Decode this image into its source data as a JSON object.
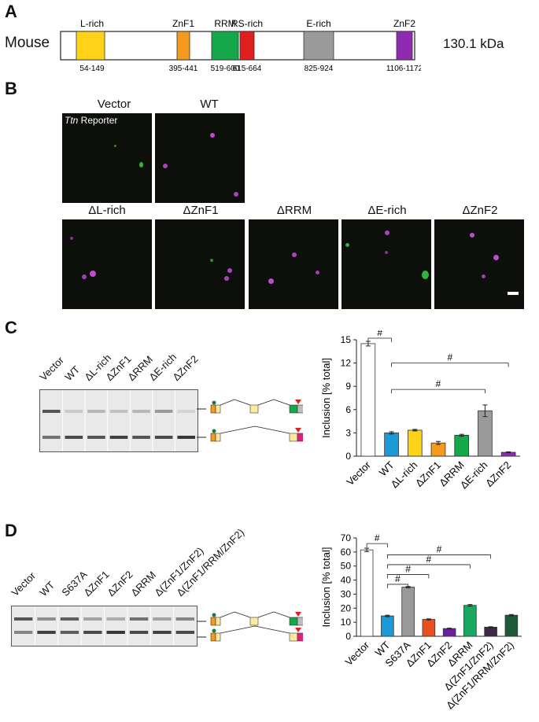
{
  "panel_a": {
    "letter": "A",
    "species": "Mouse",
    "mass": "130.1 kDa",
    "domains": [
      {
        "name": "L-rich",
        "range": "54-149",
        "color": "#ffd21a"
      },
      {
        "name": "ZnF1",
        "range": "395-441",
        "color": "#f39a1f"
      },
      {
        "name": "RRM",
        "range": "519-600",
        "color": "#15a84a"
      },
      {
        "name": "RS-rich",
        "range": "615-664",
        "color": "#e0201e"
      },
      {
        "name": "E-rich",
        "range": "825-924",
        "color": "#9a9a9a"
      },
      {
        "name": "ZnF2",
        "range": "1106-1172",
        "color": "#8e2bb0"
      }
    ]
  },
  "panel_b": {
    "letter": "B",
    "reporter_italic": "Ttn",
    "reporter_rest": " Reporter",
    "top_labels": [
      "Vector",
      "WT"
    ],
    "bottom_labels": [
      "ΔL-rich",
      "ΔZnF1",
      "ΔRRM",
      "ΔE-rich",
      "ΔZnF2"
    ]
  },
  "panel_c": {
    "letter": "C",
    "gel_lanes": [
      "Vector",
      "WT",
      "ΔL-rich",
      "ΔZnF1",
      "ΔRRM",
      "ΔE-rich",
      "ΔZnF2"
    ],
    "sig_marks": [
      "#",
      "#",
      "#"
    ]
  },
  "panel_d": {
    "letter": "D",
    "gel_lanes": [
      "Vector",
      "WT",
      "S637A",
      "ΔZnF1",
      "ΔZnF2",
      "ΔRRM",
      "Δ(ZnF1/ZnF2)",
      "Δ(ZnF1/RRM/ZnF2)"
    ],
    "sig_marks": [
      "#",
      "#",
      "#",
      "#",
      "#"
    ]
  },
  "chart_data": [
    {
      "type": "bar",
      "categories": [
        "Vector",
        "WT",
        "ΔL-rich",
        "ΔZnF1",
        "ΔRRM",
        "ΔE-rich",
        "ΔZnF2"
      ],
      "values": [
        14.5,
        3.0,
        3.35,
        1.7,
        2.7,
        5.85,
        0.5
      ],
      "errors": [
        0.3,
        0.15,
        0.1,
        0.2,
        0.12,
        0.75,
        0.06
      ],
      "colors": [
        "#ffffff",
        "#1a9ad6",
        "#ffd21a",
        "#f39a1f",
        "#15a84a",
        "#9a9a9a",
        "#8e2bb0"
      ],
      "ylabel": "Inclusion [% total]",
      "yticks": [
        "0",
        "3",
        "6",
        "9",
        "12",
        "15"
      ],
      "ylim": [
        0,
        15
      ]
    },
    {
      "type": "bar",
      "categories": [
        "Vector",
        "WT",
        "S637A",
        "ΔZnF1",
        "ΔZnF2",
        "ΔRRM",
        "Δ(ZnF1/ZnF2)",
        "Δ(ZnF1/RRM/ZnF2)"
      ],
      "values": [
        61.5,
        14.5,
        35.0,
        12.0,
        5.5,
        22.0,
        6.5,
        15.0
      ],
      "errors": [
        1.2,
        0.5,
        0.5,
        0.4,
        0.3,
        0.6,
        0.3,
        0.5
      ],
      "colors": [
        "#ffffff",
        "#1a9ad6",
        "#9a9a9a",
        "#e8501e",
        "#6a1f9e",
        "#1aa860",
        "#3a2a45",
        "#1e5a38"
      ],
      "ylabel": "Inclusion [% total]",
      "yticks": [
        "0",
        "10",
        "20",
        "30",
        "40",
        "50",
        "60",
        "70"
      ],
      "ylim": [
        0,
        70
      ]
    }
  ]
}
